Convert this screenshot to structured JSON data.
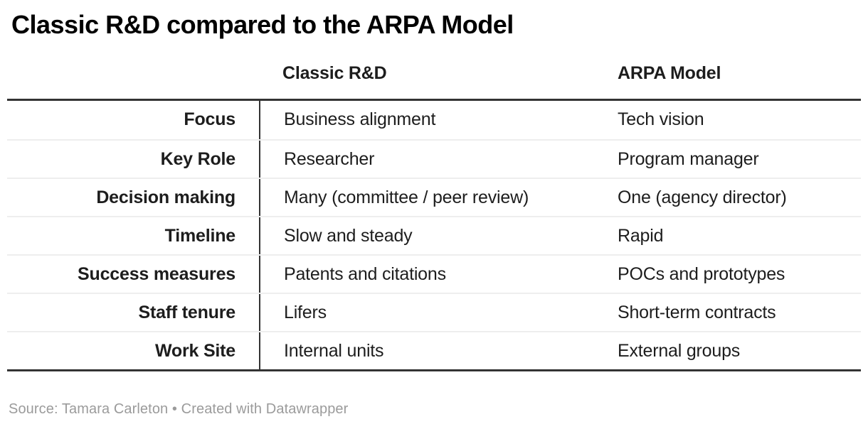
{
  "title": "Classic R&D compared to the ARPA Model",
  "footer": {
    "source_line": "Source: Tamara Carleton • Created with Datawrapper"
  },
  "colors": {
    "background": "#ffffff",
    "title_text": "#000000",
    "body_text": "#1d1d1d",
    "heavy_rule": "#333333",
    "row_separator": "#eeeeee",
    "footer_text": "#9b9b9b"
  },
  "chart_data": {
    "type": "table",
    "title": "Classic R&D compared to the ARPA Model",
    "columns": [
      "",
      "Classic R&D",
      "ARPA Model"
    ],
    "rows": [
      {
        "label": "Focus",
        "classic": "Business alignment",
        "arpa": "Tech vision"
      },
      {
        "label": "Key Role",
        "classic": "Researcher",
        "arpa": "Program manager"
      },
      {
        "label": "Decision making",
        "classic": "Many (committee / peer review)",
        "arpa": "One (agency director)"
      },
      {
        "label": "Timeline",
        "classic": "Slow and steady",
        "arpa": "Rapid"
      },
      {
        "label": "Success measures",
        "classic": "Patents and citations",
        "arpa": "POCs and prototypes"
      },
      {
        "label": "Staff tenure",
        "classic": "Lifers",
        "arpa": "Short-term contracts"
      },
      {
        "label": "Work Site",
        "classic": "Internal units",
        "arpa": "External groups"
      }
    ],
    "layout_hints": {
      "first_column_alignment": "right",
      "value_column_alignment": "left",
      "header_rule": "heavy",
      "bottom_rule": "heavy",
      "vertical_divider_after_first_column": true
    }
  }
}
